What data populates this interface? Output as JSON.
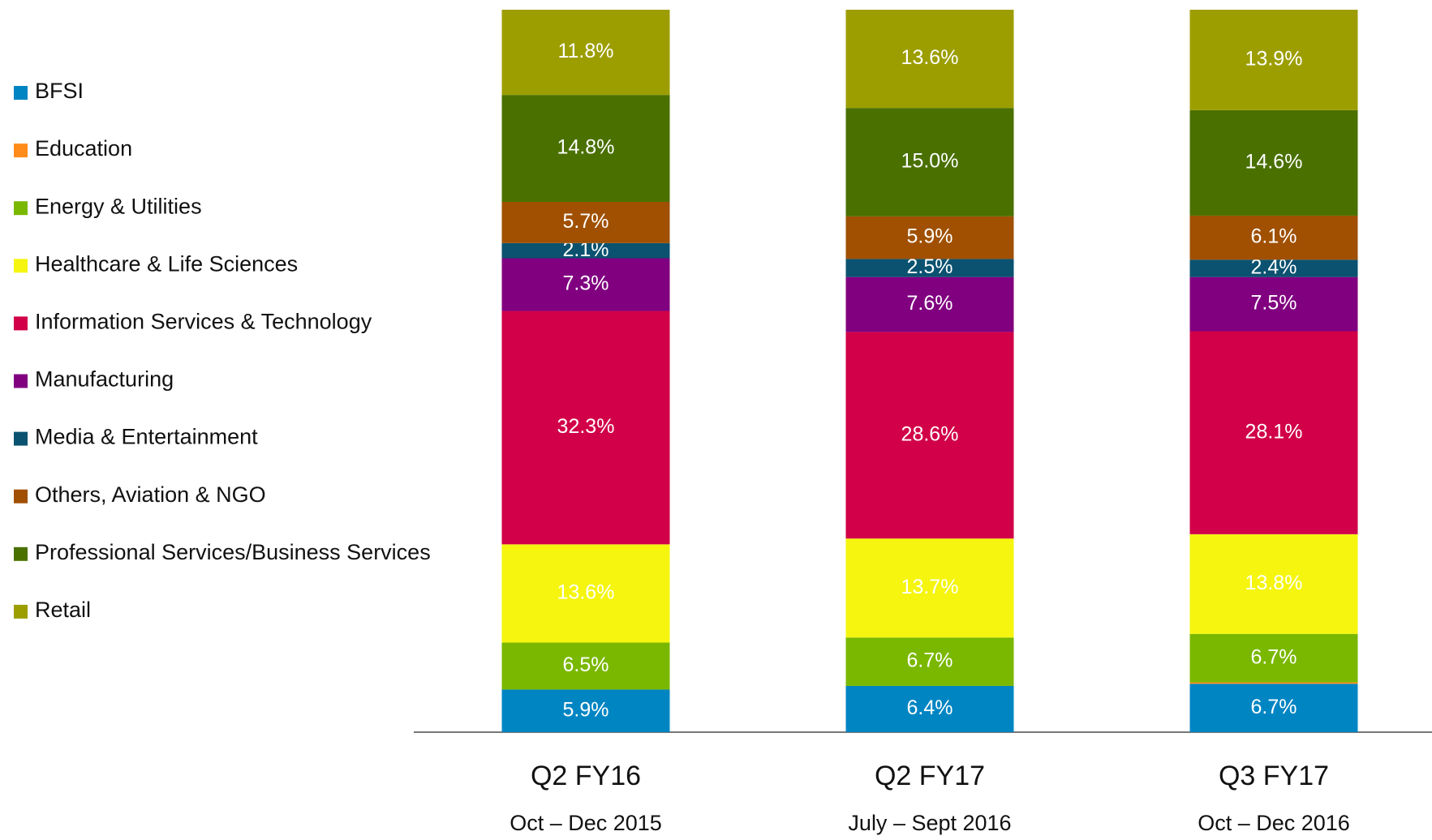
{
  "chart_data": {
    "type": "stacked_bar",
    "categories": [
      "Q2 FY16",
      "Q2 FY17",
      "Q3 FY17"
    ],
    "category_subtitles": [
      "Oct – Dec 2015",
      "July – Sept 2016",
      "Oct – Dec 2016"
    ],
    "ylim": [
      0,
      100
    ],
    "legend": "left",
    "series": [
      {
        "name": "BFSI",
        "color": "#0085c3",
        "values": [
          5.9,
          6.4,
          6.7
        ],
        "value_labels": [
          "5.9%",
          "6.4%",
          "6.7%"
        ]
      },
      {
        "name": "Education",
        "color": "#ff8c1a",
        "values": [
          0,
          0,
          0.2
        ]
      },
      {
        "name": "Energy & Utilities",
        "color": "#7ab800",
        "values": [
          6.5,
          6.7,
          6.7
        ],
        "value_labels": [
          "6.5%",
          "6.7%",
          "6.7%"
        ]
      },
      {
        "name": "Healthcare & Life Sciences",
        "color": "#f5f50f",
        "values": [
          13.6,
          13.7,
          13.8
        ],
        "value_labels": [
          "13.6%",
          "13.7%",
          "13.8%"
        ]
      },
      {
        "name": "Information Services & Technology",
        "color": "#d10048",
        "values": [
          32.3,
          28.6,
          28.1
        ],
        "value_labels": [
          "32.3%",
          "28.6%",
          "28.1%"
        ]
      },
      {
        "name": "Manufacturing",
        "color": "#800080",
        "values": [
          7.3,
          7.6,
          7.5
        ],
        "value_labels": [
          "7.3%",
          "7.6%",
          "7.5%"
        ]
      },
      {
        "name": "Media & Entertainment",
        "color": "#0a5270",
        "values": [
          2.1,
          2.5,
          2.4
        ],
        "value_labels": [
          "2.1%",
          "2.5%",
          "2.4%"
        ]
      },
      {
        "name": "Others, Aviation & NGO",
        "color": "#a05000",
        "values": [
          5.7,
          5.9,
          6.1
        ],
        "value_labels": [
          "5.7%",
          "5.9%",
          "6.1%"
        ]
      },
      {
        "name": "Professional Services/Business Services",
        "color": "#4a7000",
        "values": [
          14.8,
          15.0,
          14.6
        ],
        "value_labels": [
          "14.8%",
          "15.0%",
          "14.6%"
        ]
      },
      {
        "name": "Retail",
        "color": "#9c9e00",
        "values": [
          11.8,
          13.6,
          13.9
        ],
        "value_labels": [
          "11.8%",
          "13.6%",
          "13.9%"
        ]
      }
    ]
  }
}
